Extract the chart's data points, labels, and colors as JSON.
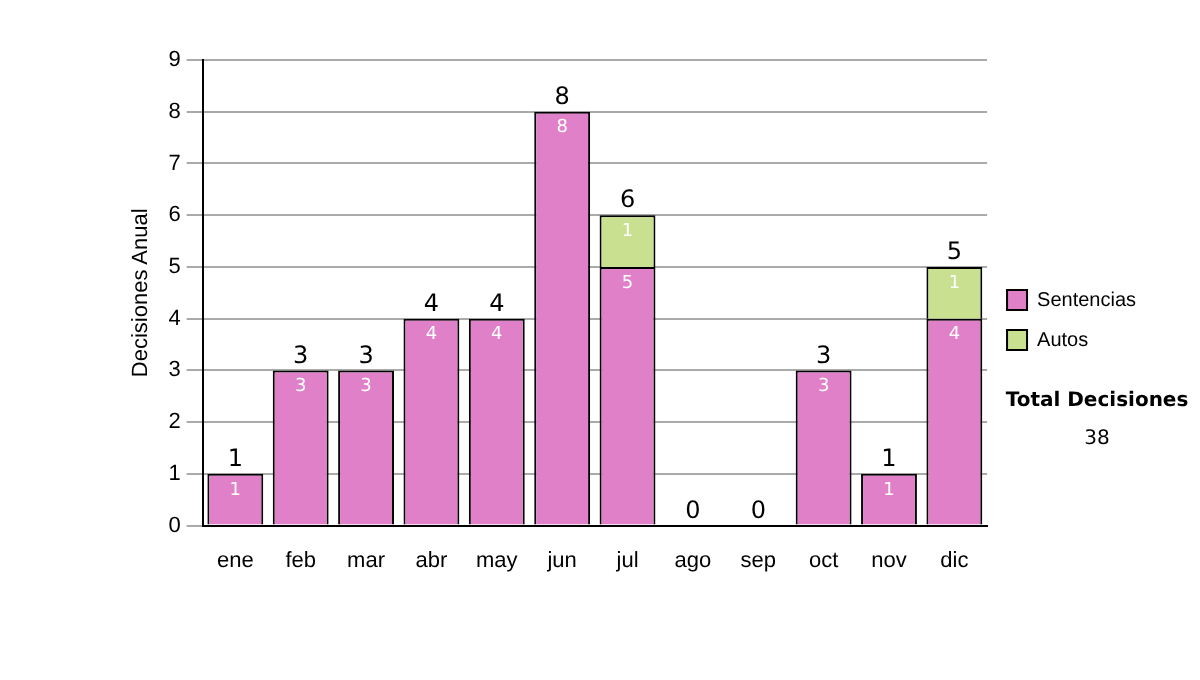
{
  "chart_data": {
    "type": "bar",
    "stacked": true,
    "ylabel": "Decisiones Anual",
    "categories": [
      "ene",
      "feb",
      "mar",
      "abr",
      "may",
      "jun",
      "jul",
      "ago",
      "sep",
      "oct",
      "nov",
      "dic"
    ],
    "series": [
      {
        "name": "Sentencias",
        "color": "#e080c8",
        "values": [
          1,
          3,
          3,
          4,
          4,
          8,
          5,
          0,
          0,
          3,
          1,
          4
        ],
        "value_labels": [
          "1",
          "3",
          "3",
          "4",
          "4",
          "8",
          "5",
          null,
          null,
          "3",
          "1",
          "4"
        ]
      },
      {
        "name": "Autos",
        "color": "#c8e090",
        "values": [
          0,
          0,
          0,
          0,
          0,
          0,
          1,
          0,
          0,
          0,
          0,
          1
        ],
        "value_labels": [
          null,
          null,
          null,
          null,
          null,
          null,
          "1",
          null,
          null,
          null,
          null,
          "1"
        ]
      }
    ],
    "totals": [
      "1",
      "3",
      "3",
      "4",
      "4",
      "8",
      "6",
      "0",
      "0",
      "3",
      "1",
      "5"
    ],
    "ylim": [
      0,
      9
    ],
    "yticks": [
      0,
      1,
      2,
      3,
      4,
      5,
      6,
      7,
      8,
      9
    ],
    "grid": "y",
    "legend": "right",
    "annotations": [
      "Total Decisiones",
      "38"
    ]
  }
}
